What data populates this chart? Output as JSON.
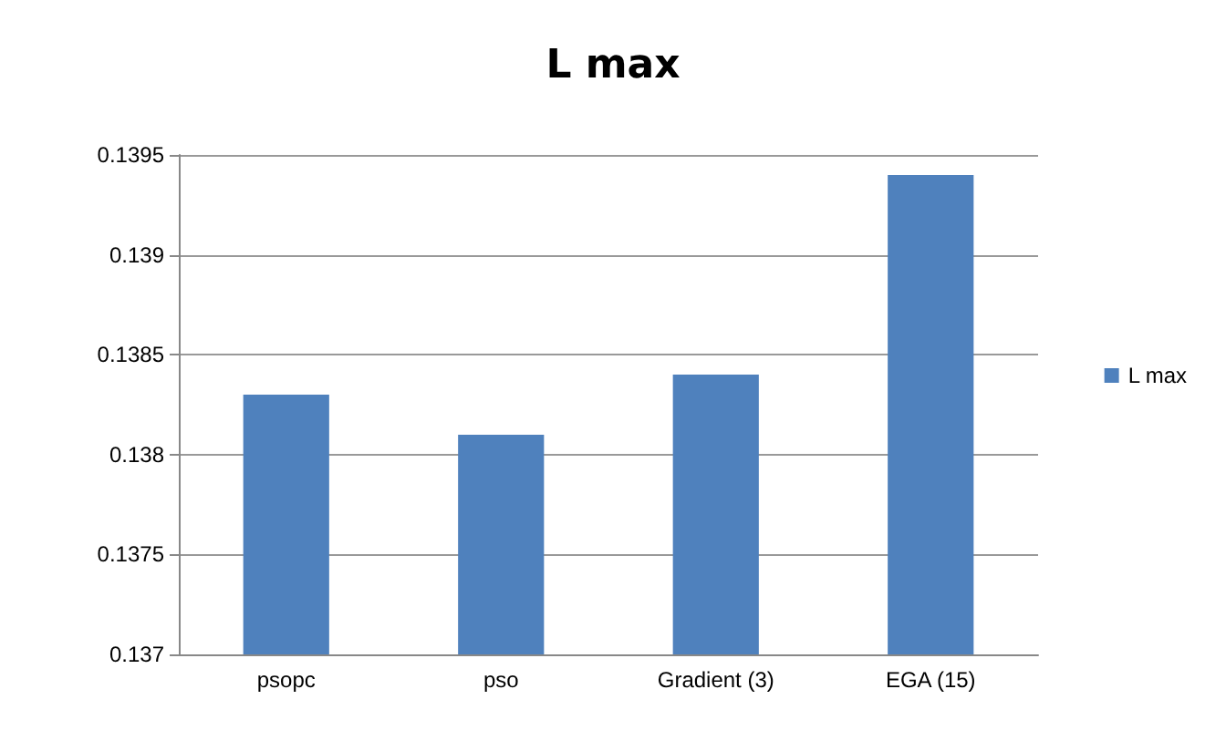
{
  "chart_data": {
    "type": "bar",
    "title": "L max",
    "categories": [
      "psopc",
      "pso",
      "Gradient (3)",
      "EGA (15)"
    ],
    "series": [
      {
        "name": "L max",
        "color": "#4f81bd",
        "values": [
          0.1383,
          0.1381,
          0.1384,
          0.1394
        ]
      }
    ],
    "ylim": [
      0.137,
      0.1395
    ],
    "yticks": [
      0.137,
      0.1375,
      0.138,
      0.1385,
      0.139,
      0.1395
    ],
    "grid": "y",
    "legend": "right"
  }
}
